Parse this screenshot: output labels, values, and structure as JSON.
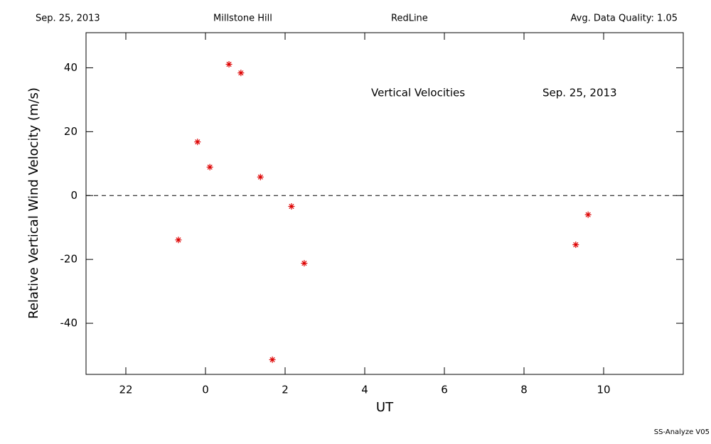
{
  "chart_data": {
    "type": "scatter",
    "header": [
      "Sep. 25, 2013",
      "Millstone Hill",
      "RedLine",
      "Avg. Data Quality: 1.05"
    ],
    "annotations": [
      "Vertical Velocities",
      "Sep. 25, 2013"
    ],
    "footer": "SS-Analyze V05",
    "x_label": "UT",
    "y_label": "Relative Vertical Wind Velocity (m/s)",
    "x": [
      -0.68,
      -0.2,
      0.11,
      0.59,
      0.89,
      1.38,
      1.68,
      2.16,
      2.48,
      9.3,
      9.61
    ],
    "values": [
      -13.9,
      16.8,
      8.9,
      41.1,
      38.4,
      5.8,
      -51.4,
      -3.4,
      -21.2,
      -15.4,
      -6.0
    ],
    "color": "#dd0000",
    "xlim": [
      -3,
      12
    ],
    "xticks": [
      {
        "value": -2,
        "label": "22"
      },
      0,
      2,
      4,
      6,
      8,
      10
    ],
    "ylim": [
      -56,
      51
    ],
    "yticks": [
      -40,
      -20,
      0,
      20,
      40
    ],
    "reference_line": 0
  }
}
